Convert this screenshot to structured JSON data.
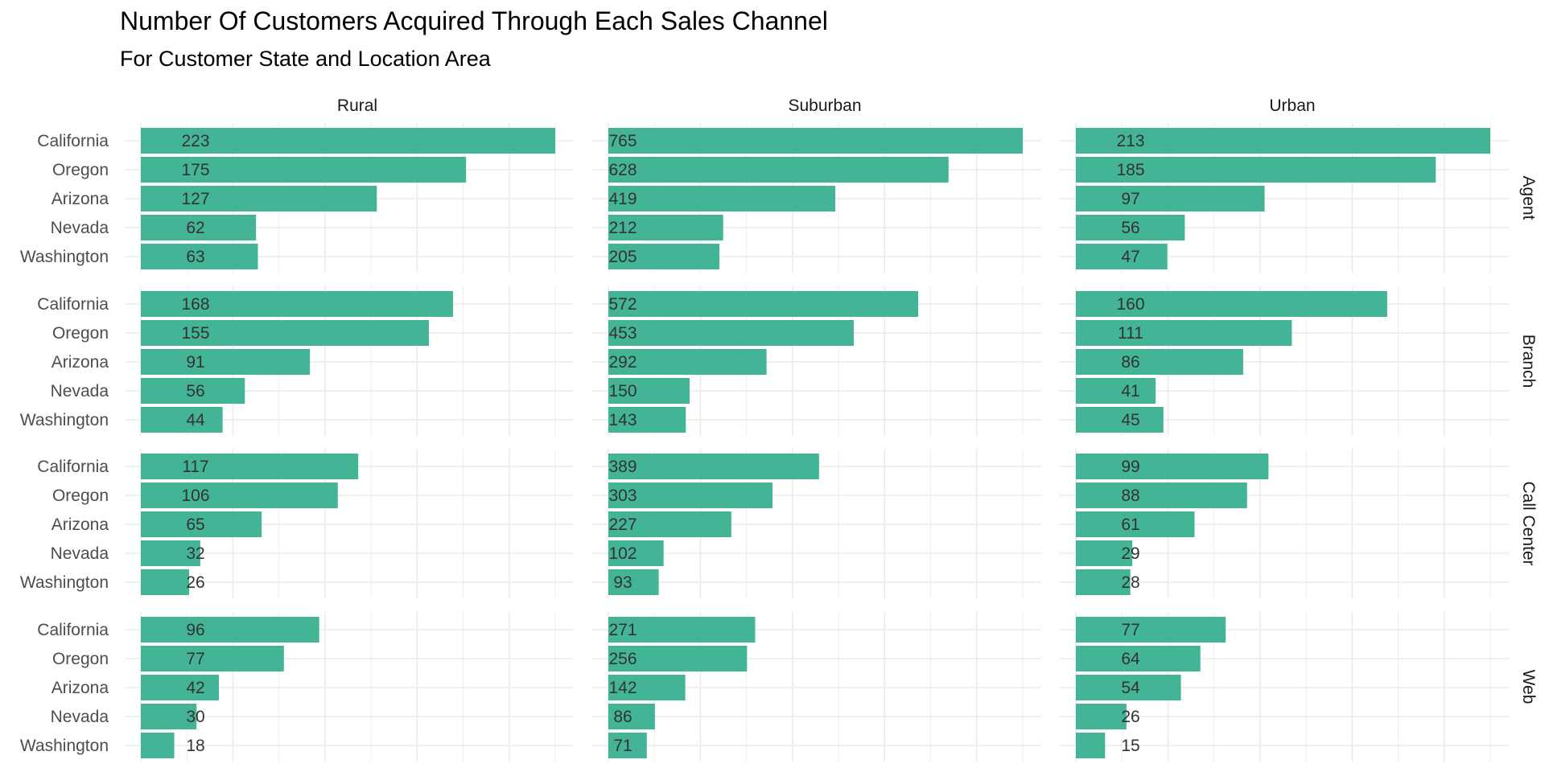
{
  "chart_data": {
    "type": "bar",
    "orientation": "horizontal",
    "faceted": true,
    "title": "Number Of Customers Acquired Through Each Sales Channel",
    "subtitle": "For Customer State and Location Area",
    "xlabel": "",
    "ylabel": "",
    "facet_columns": [
      "Rural",
      "Suburban",
      "Urban"
    ],
    "facet_rows": [
      "Agent",
      "Branch",
      "Call Center",
      "Web"
    ],
    "categories": [
      "California",
      "Oregon",
      "Arizona",
      "Nevada",
      "Washington"
    ],
    "bar_color": "#43b496",
    "grid": true,
    "panels": [
      {
        "row": "Agent",
        "column": "Rural",
        "values": [
          223,
          175,
          127,
          62,
          63
        ]
      },
      {
        "row": "Agent",
        "column": "Suburban",
        "values": [
          765,
          628,
          419,
          212,
          205
        ]
      },
      {
        "row": "Agent",
        "column": "Urban",
        "values": [
          213,
          185,
          97,
          56,
          47
        ]
      },
      {
        "row": "Branch",
        "column": "Rural",
        "values": [
          168,
          155,
          91,
          56,
          44
        ]
      },
      {
        "row": "Branch",
        "column": "Suburban",
        "values": [
          572,
          453,
          292,
          150,
          143
        ]
      },
      {
        "row": "Branch",
        "column": "Urban",
        "values": [
          160,
          111,
          86,
          41,
          45
        ]
      },
      {
        "row": "Call Center",
        "column": "Rural",
        "values": [
          117,
          106,
          65,
          32,
          26
        ]
      },
      {
        "row": "Call Center",
        "column": "Suburban",
        "values": [
          389,
          303,
          227,
          102,
          93
        ]
      },
      {
        "row": "Call Center",
        "column": "Urban",
        "values": [
          99,
          88,
          61,
          29,
          28
        ]
      },
      {
        "row": "Web",
        "column": "Rural",
        "values": [
          96,
          77,
          42,
          30,
          18
        ]
      },
      {
        "row": "Web",
        "column": "Suburban",
        "values": [
          271,
          256,
          142,
          86,
          71
        ]
      },
      {
        "row": "Web",
        "column": "Urban",
        "values": [
          77,
          64,
          54,
          26,
          15
        ]
      }
    ]
  }
}
